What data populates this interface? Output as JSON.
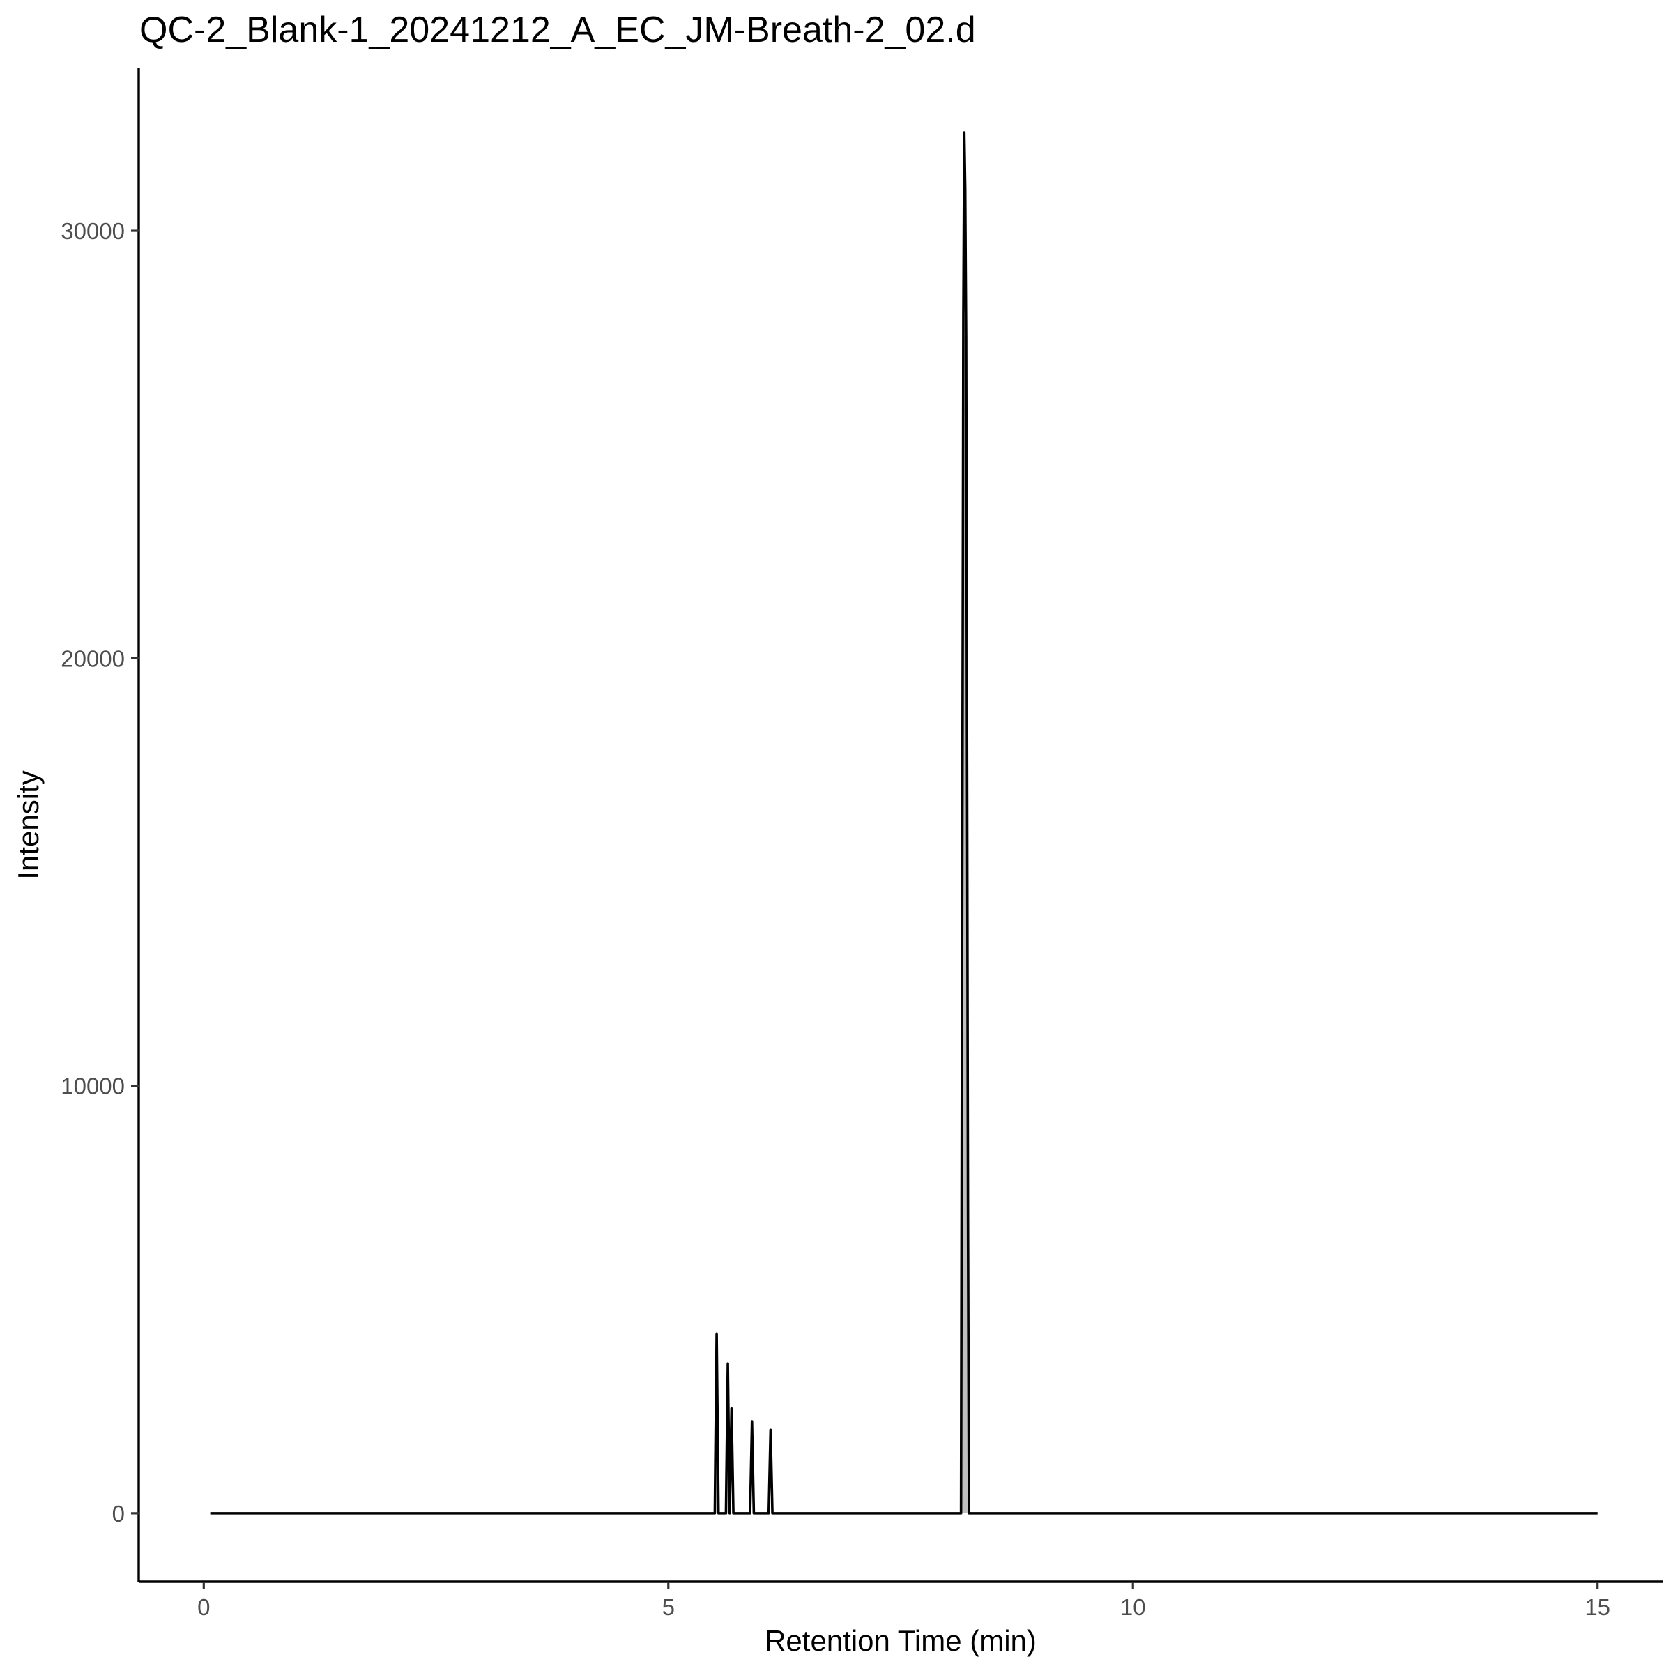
{
  "chart_data": {
    "type": "line",
    "title": "QC-2_Blank-1_20241212_A_EC_JM-Breath-2_02.d",
    "xlabel": "Retention Time (min)",
    "ylabel": "Intensity",
    "xlim": [
      -0.7,
      15.7
    ],
    "ylim": [
      -1600,
      33800
    ],
    "x_ticks": [
      0,
      5,
      10,
      15
    ],
    "y_ticks": [
      0,
      10000,
      20000,
      30000
    ],
    "x_tick_labels": [
      "0",
      "5",
      "10",
      "15"
    ],
    "y_tick_labels": [
      "0",
      "10000",
      "20000",
      "30000"
    ],
    "grid": false,
    "legend": "none",
    "colors": {
      "trace": "#000000",
      "peak_fill": "#bfbfbf",
      "axis": "#000000",
      "tick_label": "#4d4d4d"
    },
    "series": [
      {
        "x": [
          0.07,
          5.5,
          5.52,
          5.54,
          5.56,
          5.58,
          5.6,
          5.62,
          5.64,
          5.66,
          5.68,
          5.7,
          5.72,
          5.74,
          5.76,
          5.78,
          5.8,
          5.82,
          5.84,
          5.86,
          5.88,
          5.9,
          5.92,
          5.94,
          5.96,
          5.98,
          6.0,
          6.02,
          6.04,
          6.06,
          6.08,
          6.1,
          6.12,
          6.14,
          6.16,
          6.18,
          6.2,
          8.15,
          8.165,
          8.175,
          8.185,
          8.195,
          8.205,
          8.215,
          8.225,
          8.235,
          8.25,
          8.265,
          15.0
        ],
        "y": [
          0,
          0,
          4200,
          0,
          0,
          0,
          0,
          0,
          3500,
          0,
          2450,
          0,
          0,
          0,
          0,
          0,
          0,
          0,
          0,
          0,
          0,
          2150,
          0,
          0,
          0,
          0,
          0,
          0,
          0,
          0,
          0,
          1950,
          0,
          0,
          0,
          0,
          0,
          0,
          17000,
          28000,
          32300,
          31000,
          27500,
          17500,
          7000,
          0,
          0,
          0,
          0
        ]
      }
    ]
  }
}
